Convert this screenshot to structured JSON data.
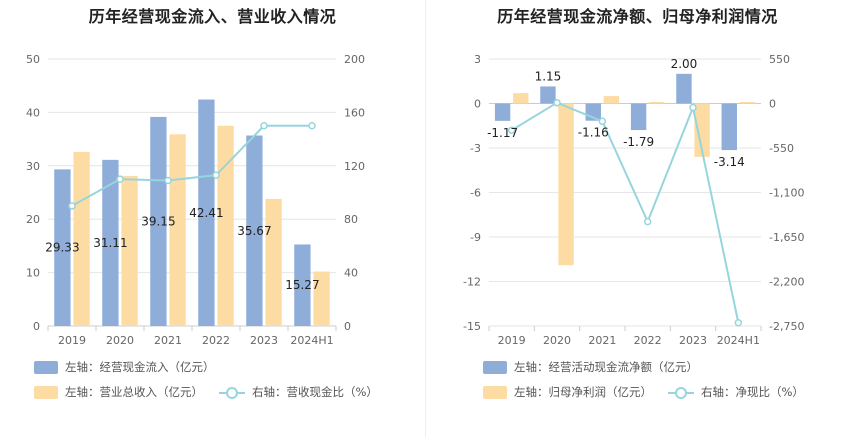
{
  "colors": {
    "cash_inflow": "#8eadd9",
    "revenue": "#fddca3",
    "ratio_line": "#97d5dd",
    "net_cash": "#8eadd9",
    "net_profit": "#fddca3",
    "net_ratio_line": "#97d5dd",
    "grid": "#e6e6e6",
    "axis_text": "#666666"
  },
  "chart_data": [
    {
      "type": "bar",
      "title": "历年经营现金流入、营业收入情况",
      "categories": [
        "2019",
        "2020",
        "2021",
        "2022",
        "2023",
        "2024H1"
      ],
      "y_left": {
        "ticks": [
          0,
          10,
          20,
          30,
          40,
          50
        ],
        "ylim": [
          0,
          50
        ]
      },
      "y_right": {
        "ticks": [
          0,
          40,
          80,
          120,
          160,
          200
        ],
        "ylim": [
          0,
          200
        ]
      },
      "series": [
        {
          "name": "左轴：经营现金流入（亿元）",
          "kind": "bar",
          "axis": "left",
          "values": [
            29.33,
            31.11,
            39.15,
            42.41,
            35.67,
            15.27
          ],
          "labels": [
            "29.33",
            "31.11",
            "39.15",
            "42.41",
            "35.67",
            "15.27"
          ]
        },
        {
          "name": "左轴：营业总收入（亿元）",
          "kind": "bar",
          "axis": "left",
          "values": [
            32.6,
            28.1,
            35.9,
            37.5,
            23.8,
            10.2
          ]
        },
        {
          "name": "右轴：营收现金比（%）",
          "kind": "line",
          "axis": "right",
          "values": [
            90,
            110,
            109,
            113,
            150,
            150
          ]
        }
      ]
    },
    {
      "type": "bar",
      "title": "历年经营现金流净额、归母净利润情况",
      "categories": [
        "2019",
        "2020",
        "2021",
        "2022",
        "2023",
        "2024H1"
      ],
      "y_left": {
        "ticks": [
          3,
          0,
          -3,
          -6,
          -9,
          -12,
          -15
        ],
        "ylim": [
          -15,
          3
        ]
      },
      "y_right": {
        "ticks": [
          "550",
          "0",
          "-550",
          "-1,100",
          "-1,650",
          "-2,200",
          "-2,750"
        ],
        "ylim": [
          -2750,
          550
        ]
      },
      "series": [
        {
          "name": "左轴：经营活动现金流净额（亿元）",
          "kind": "bar",
          "axis": "left",
          "values": [
            -1.17,
            1.15,
            -1.16,
            -1.79,
            2.0,
            -3.14
          ],
          "labels": [
            "-1.17",
            "1.15",
            "-1.16",
            "-1.79",
            "2.00",
            "-3.14"
          ]
        },
        {
          "name": "左轴：归母净利润（亿元）",
          "kind": "bar",
          "axis": "left",
          "values": [
            0.7,
            -10.9,
            0.5,
            0.1,
            -3.6,
            0.1
          ]
        },
        {
          "name": "右轴：净现比（%）",
          "kind": "line",
          "axis": "right",
          "values": [
            -330,
            10,
            -220,
            -1460,
            -50,
            -2710
          ]
        }
      ]
    }
  ]
}
